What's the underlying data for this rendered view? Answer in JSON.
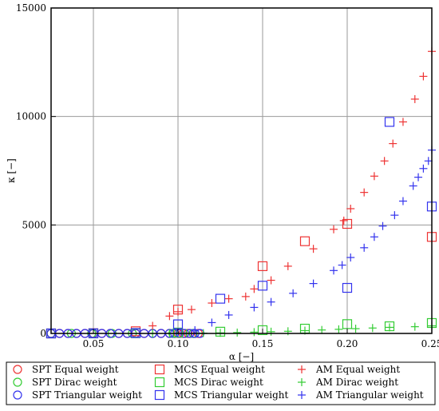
{
  "chart_data": {
    "type": "scatter",
    "xlabel": "α [−]",
    "ylabel": "κ [−]",
    "xlim": [
      0.025,
      0.25
    ],
    "ylim": [
      0,
      15000
    ],
    "x_ticks": [
      0.05,
      0.1,
      0.15,
      0.2,
      0.25
    ],
    "x_tick_labels": [
      "0.05",
      "0.10",
      "0.15",
      "0.20",
      "0.25"
    ],
    "y_ticks": [
      0,
      5000,
      10000,
      15000
    ],
    "y_tick_labels": [
      "0",
      "5000",
      "10000",
      "15000"
    ],
    "grid": true,
    "legend_position": "bottom",
    "series": [
      {
        "name": "SPT Equal weight",
        "marker": "circle",
        "color": "#ee3333",
        "points": [
          [
            0.025,
            0
          ],
          [
            0.03,
            0
          ],
          [
            0.035,
            0
          ],
          [
            0.04,
            0
          ],
          [
            0.045,
            0
          ],
          [
            0.05,
            0
          ],
          [
            0.055,
            0
          ],
          [
            0.06,
            0
          ],
          [
            0.065,
            0
          ],
          [
            0.07,
            0
          ],
          [
            0.075,
            0
          ],
          [
            0.08,
            0
          ],
          [
            0.085,
            0
          ],
          [
            0.09,
            0
          ],
          [
            0.095,
            0
          ],
          [
            0.1,
            0
          ],
          [
            0.103,
            0
          ],
          [
            0.106,
            0
          ],
          [
            0.109,
            0
          ],
          [
            0.112,
            0
          ]
        ]
      },
      {
        "name": "SPT Dirac weight",
        "marker": "circle",
        "color": "#33cc33",
        "points": [
          [
            0.025,
            0
          ],
          [
            0.037,
            0
          ],
          [
            0.049,
            0
          ],
          [
            0.061,
            0
          ],
          [
            0.073,
            0
          ],
          [
            0.085,
            0
          ],
          [
            0.097,
            0
          ],
          [
            0.109,
            0
          ]
        ]
      },
      {
        "name": "SPT Triangular weight",
        "marker": "circle",
        "color": "#3333ee",
        "points": [
          [
            0.025,
            0
          ],
          [
            0.03,
            0
          ],
          [
            0.035,
            0
          ],
          [
            0.04,
            0
          ],
          [
            0.045,
            0
          ],
          [
            0.05,
            0
          ],
          [
            0.055,
            0
          ],
          [
            0.06,
            0
          ],
          [
            0.065,
            0
          ],
          [
            0.07,
            0
          ],
          [
            0.075,
            0
          ],
          [
            0.08,
            0
          ],
          [
            0.085,
            0
          ],
          [
            0.09,
            0
          ],
          [
            0.095,
            0
          ],
          [
            0.098,
            0
          ],
          [
            0.101,
            0
          ],
          [
            0.104,
            0
          ],
          [
            0.107,
            0
          ],
          [
            0.11,
            0
          ],
          [
            0.113,
            0
          ]
        ]
      },
      {
        "name": "MCS Equal weight",
        "marker": "square",
        "color": "#ee3333",
        "points": [
          [
            0.025,
            0
          ],
          [
            0.05,
            10
          ],
          [
            0.075,
            100
          ],
          [
            0.1,
            1100
          ],
          [
            0.15,
            3100
          ],
          [
            0.175,
            4250
          ],
          [
            0.2,
            5050
          ],
          [
            0.25,
            4450
          ]
        ]
      },
      {
        "name": "MCS Dirac weight",
        "marker": "square",
        "color": "#33cc33",
        "points": [
          [
            0.025,
            0
          ],
          [
            0.05,
            0
          ],
          [
            0.075,
            10
          ],
          [
            0.1,
            40
          ],
          [
            0.125,
            80
          ],
          [
            0.15,
            150
          ],
          [
            0.175,
            220
          ],
          [
            0.2,
            430
          ],
          [
            0.225,
            330
          ],
          [
            0.25,
            480
          ]
        ]
      },
      {
        "name": "MCS Triangular weight",
        "marker": "square",
        "color": "#3333ee",
        "points": [
          [
            0.025,
            0
          ],
          [
            0.05,
            5
          ],
          [
            0.075,
            20
          ],
          [
            0.1,
            420
          ],
          [
            0.125,
            1600
          ],
          [
            0.15,
            2200
          ],
          [
            0.2,
            2100
          ],
          [
            0.225,
            9750
          ],
          [
            0.25,
            5850
          ]
        ]
      },
      {
        "name": "AM Equal weight",
        "marker": "plus",
        "color": "#ee3333",
        "points": [
          [
            0.085,
            350
          ],
          [
            0.095,
            800
          ],
          [
            0.1,
            1000
          ],
          [
            0.108,
            1100
          ],
          [
            0.12,
            1400
          ],
          [
            0.13,
            1600
          ],
          [
            0.14,
            1700
          ],
          [
            0.145,
            2050
          ],
          [
            0.155,
            2450
          ],
          [
            0.165,
            3100
          ],
          [
            0.18,
            3900
          ],
          [
            0.192,
            4800
          ],
          [
            0.198,
            5200
          ],
          [
            0.202,
            5750
          ],
          [
            0.21,
            6500
          ],
          [
            0.216,
            7250
          ],
          [
            0.222,
            7950
          ],
          [
            0.227,
            8750
          ],
          [
            0.233,
            9750
          ],
          [
            0.24,
            10800
          ],
          [
            0.245,
            11850
          ],
          [
            0.25,
            13000
          ]
        ]
      },
      {
        "name": "AM Dirac weight",
        "marker": "plus",
        "color": "#33cc33",
        "points": [
          [
            0.085,
            0
          ],
          [
            0.095,
            5
          ],
          [
            0.105,
            10
          ],
          [
            0.115,
            15
          ],
          [
            0.125,
            25
          ],
          [
            0.135,
            40
          ],
          [
            0.145,
            60
          ],
          [
            0.155,
            80
          ],
          [
            0.165,
            100
          ],
          [
            0.175,
            130
          ],
          [
            0.185,
            160
          ],
          [
            0.195,
            190
          ],
          [
            0.205,
            220
          ],
          [
            0.215,
            250
          ],
          [
            0.225,
            280
          ],
          [
            0.24,
            310
          ],
          [
            0.25,
            350
          ]
        ]
      },
      {
        "name": "AM Triangular weight",
        "marker": "plus",
        "color": "#3333ee",
        "points": [
          [
            0.1,
            0
          ],
          [
            0.11,
            150
          ],
          [
            0.12,
            500
          ],
          [
            0.13,
            850
          ],
          [
            0.145,
            1200
          ],
          [
            0.155,
            1450
          ],
          [
            0.168,
            1850
          ],
          [
            0.18,
            2300
          ],
          [
            0.192,
            2900
          ],
          [
            0.197,
            3150
          ],
          [
            0.202,
            3500
          ],
          [
            0.21,
            3950
          ],
          [
            0.216,
            4450
          ],
          [
            0.221,
            4950
          ],
          [
            0.228,
            5450
          ],
          [
            0.233,
            6100
          ],
          [
            0.239,
            6800
          ],
          [
            0.242,
            7200
          ],
          [
            0.245,
            7600
          ],
          [
            0.248,
            7950
          ],
          [
            0.25,
            8450
          ]
        ]
      }
    ]
  }
}
